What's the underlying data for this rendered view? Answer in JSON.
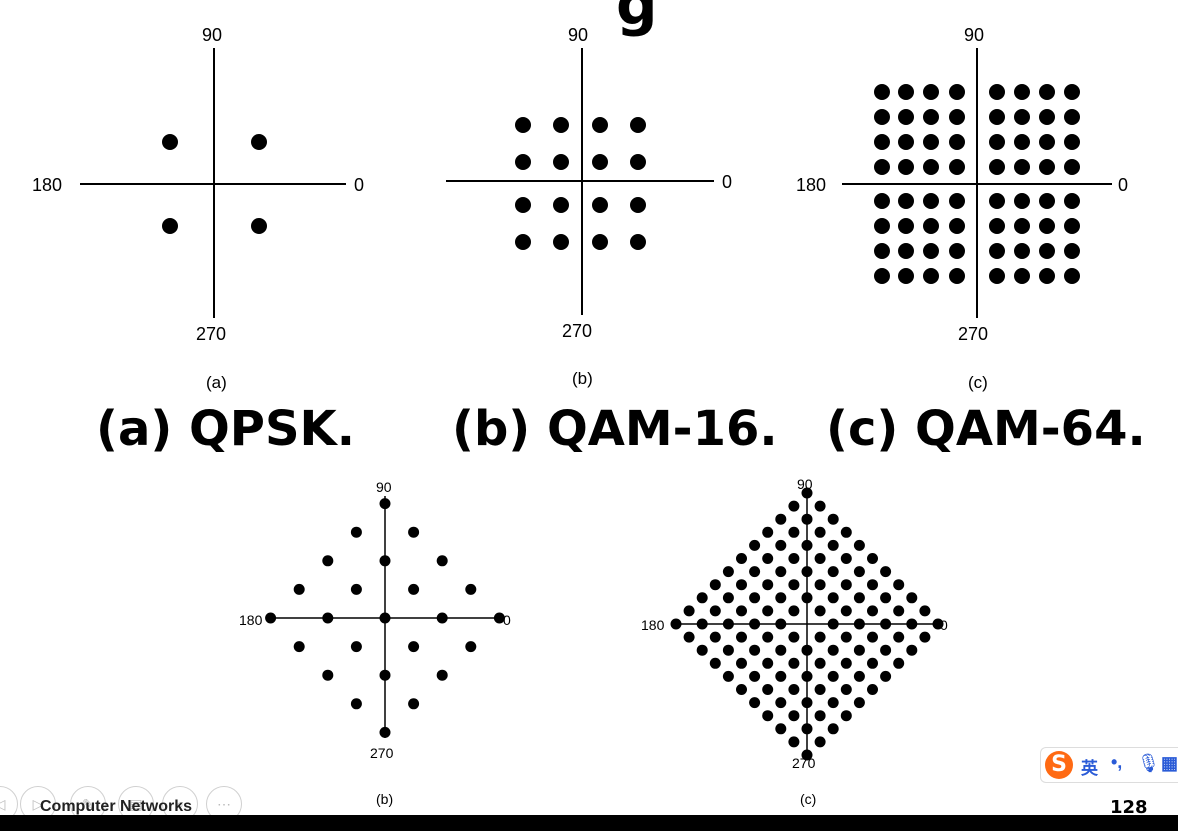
{
  "slide": {
    "title_fragment": "g",
    "page_number": "128",
    "footer": "Computer Networks"
  },
  "diagrams_top": [
    {
      "id": "a",
      "north": "90",
      "west": "180",
      "east": "0",
      "south": "270",
      "sublabel": "(a)"
    },
    {
      "id": "b",
      "north": "90",
      "east": "0",
      "south": "270",
      "sublabel": "(b)"
    },
    {
      "id": "c",
      "north": "90",
      "west": "180",
      "east": "0",
      "south": "270",
      "sublabel": "(c)"
    }
  ],
  "captions": [
    "(a) QPSK.",
    "(b) QAM-16.",
    "(c) QAM-64."
  ],
  "diagrams_bottom": [
    {
      "id": "b",
      "north": "90",
      "west": "180",
      "east": "0",
      "south": "270",
      "sublabel": "(b)"
    },
    {
      "id": "c",
      "north": "90",
      "west": "180",
      "east": "0",
      "south": "270",
      "sublabel": "(c)"
    }
  ],
  "ime": {
    "logo": "S",
    "mode": "英",
    "punct": "•,",
    "mic": "🎙",
    "more": "▦"
  },
  "presentation_controls": [
    "◁",
    "▷",
    "✎",
    "▤",
    "⌕",
    "⋯"
  ]
}
